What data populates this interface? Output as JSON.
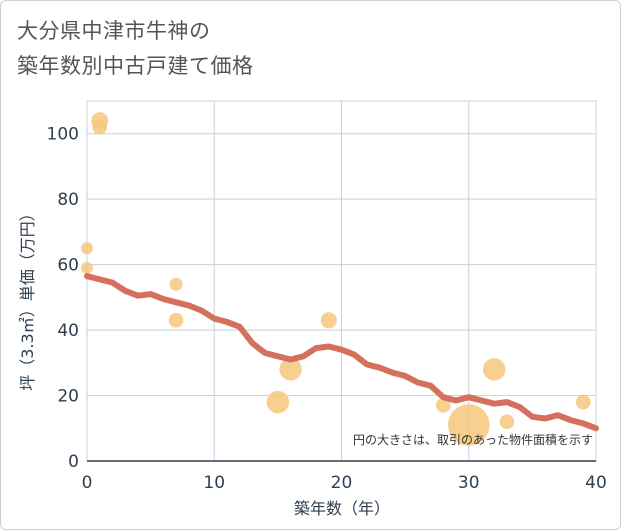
{
  "title": {
    "line1": "大分県中津市牛神の",
    "line2": "築年数別中古戸建て価格"
  },
  "chart_data": {
    "type": "scatter",
    "title": "大分県中津市牛神の築年数別中古戸建て価格",
    "xlabel": "築年数（年）",
    "ylabel": "坪（3.3㎡）単価（万円）",
    "xlim": [
      0,
      40
    ],
    "ylim": [
      0,
      110
    ],
    "xticks": [
      "0",
      "10",
      "20",
      "30",
      "40"
    ],
    "yticks": [
      "0",
      "20",
      "40",
      "60",
      "80",
      "100"
    ],
    "grid": true,
    "note": "円の大きさは、取引のあった物件面積を示す",
    "colors": {
      "points": "#f5c77e",
      "trend": "#d4705c",
      "grid": "#c8d3dc"
    },
    "points": [
      {
        "x": 0,
        "y": 65,
        "size": 1
      },
      {
        "x": 0,
        "y": 59,
        "size": 1
      },
      {
        "x": 1,
        "y": 104,
        "size": 2
      },
      {
        "x": 1,
        "y": 102,
        "size": 1.5
      },
      {
        "x": 7,
        "y": 54,
        "size": 1.2
      },
      {
        "x": 7,
        "y": 43,
        "size": 1.5
      },
      {
        "x": 15,
        "y": 18,
        "size": 3.5
      },
      {
        "x": 16,
        "y": 28,
        "size": 3.5
      },
      {
        "x": 19,
        "y": 43,
        "size": 1.8
      },
      {
        "x": 28,
        "y": 17,
        "size": 1.5
      },
      {
        "x": 30,
        "y": 11,
        "size": 12
      },
      {
        "x": 32,
        "y": 28,
        "size": 3.5
      },
      {
        "x": 33,
        "y": 12,
        "size": 1.5
      },
      {
        "x": 39,
        "y": 18,
        "size": 1.5
      }
    ],
    "trend": {
      "x": [
        0,
        1,
        2,
        3,
        4,
        5,
        6,
        7,
        8,
        9,
        10,
        11,
        12,
        13,
        14,
        15,
        16,
        17,
        18,
        19,
        20,
        21,
        22,
        23,
        24,
        25,
        26,
        27,
        28,
        29,
        30,
        31,
        32,
        33,
        34,
        35,
        36,
        37,
        38,
        39,
        40
      ],
      "y": [
        56.5,
        55.5,
        54.5,
        52,
        50.5,
        51,
        49.5,
        48.5,
        47.5,
        46,
        43.5,
        42.5,
        41,
        36,
        33,
        32,
        31,
        32,
        34.5,
        35,
        34,
        32.5,
        29.5,
        28.5,
        27,
        26,
        24,
        23,
        19.5,
        18.5,
        19.5,
        18.5,
        17.5,
        18,
        16.5,
        13.5,
        13,
        14,
        12.5,
        11.5,
        10
      ]
    }
  }
}
